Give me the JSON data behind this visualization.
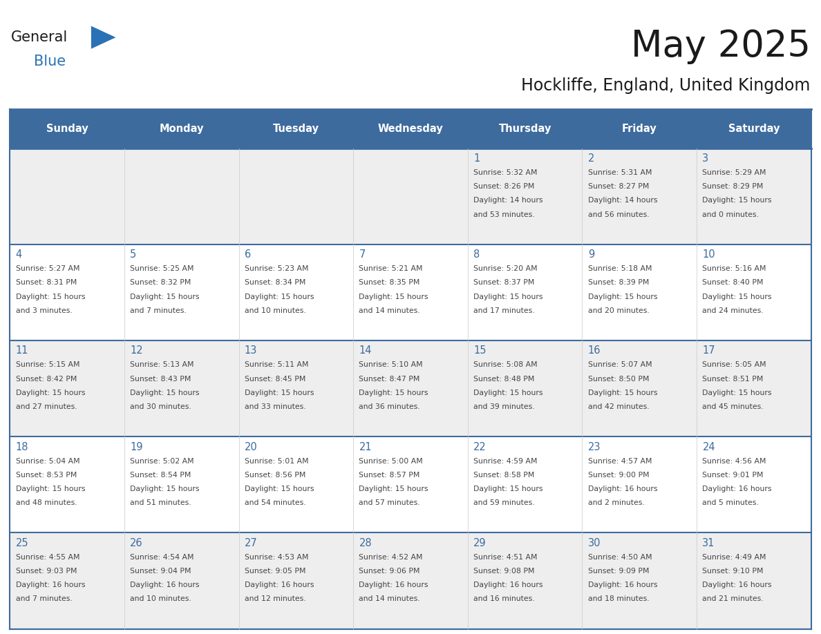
{
  "title": "May 2025",
  "subtitle": "Hockliffe, England, United Kingdom",
  "header_bg_color": "#3d6b9e",
  "header_text_color": "#ffffff",
  "day_names": [
    "Sunday",
    "Monday",
    "Tuesday",
    "Wednesday",
    "Thursday",
    "Friday",
    "Saturday"
  ],
  "row_bg_even": "#eeeeee",
  "row_bg_odd": "#ffffff",
  "cell_text_color": "#444444",
  "day_num_color": "#3d6b9e",
  "border_color": "#3d6b9e",
  "logo_general_color": "#1a1a1a",
  "logo_blue_color": "#2a72b5",
  "logo_triangle_color": "#2a72b5",
  "weeks": [
    [
      {
        "day": null,
        "sunrise": null,
        "sunset": null,
        "daylight": null
      },
      {
        "day": null,
        "sunrise": null,
        "sunset": null,
        "daylight": null
      },
      {
        "day": null,
        "sunrise": null,
        "sunset": null,
        "daylight": null
      },
      {
        "day": null,
        "sunrise": null,
        "sunset": null,
        "daylight": null
      },
      {
        "day": 1,
        "sunrise": "5:32 AM",
        "sunset": "8:26 PM",
        "daylight": "14 hours",
        "daylight2": "and 53 minutes."
      },
      {
        "day": 2,
        "sunrise": "5:31 AM",
        "sunset": "8:27 PM",
        "daylight": "14 hours",
        "daylight2": "and 56 minutes."
      },
      {
        "day": 3,
        "sunrise": "5:29 AM",
        "sunset": "8:29 PM",
        "daylight": "15 hours",
        "daylight2": "and 0 minutes."
      }
    ],
    [
      {
        "day": 4,
        "sunrise": "5:27 AM",
        "sunset": "8:31 PM",
        "daylight": "15 hours",
        "daylight2": "and 3 minutes."
      },
      {
        "day": 5,
        "sunrise": "5:25 AM",
        "sunset": "8:32 PM",
        "daylight": "15 hours",
        "daylight2": "and 7 minutes."
      },
      {
        "day": 6,
        "sunrise": "5:23 AM",
        "sunset": "8:34 PM",
        "daylight": "15 hours",
        "daylight2": "and 10 minutes."
      },
      {
        "day": 7,
        "sunrise": "5:21 AM",
        "sunset": "8:35 PM",
        "daylight": "15 hours",
        "daylight2": "and 14 minutes."
      },
      {
        "day": 8,
        "sunrise": "5:20 AM",
        "sunset": "8:37 PM",
        "daylight": "15 hours",
        "daylight2": "and 17 minutes."
      },
      {
        "day": 9,
        "sunrise": "5:18 AM",
        "sunset": "8:39 PM",
        "daylight": "15 hours",
        "daylight2": "and 20 minutes."
      },
      {
        "day": 10,
        "sunrise": "5:16 AM",
        "sunset": "8:40 PM",
        "daylight": "15 hours",
        "daylight2": "and 24 minutes."
      }
    ],
    [
      {
        "day": 11,
        "sunrise": "5:15 AM",
        "sunset": "8:42 PM",
        "daylight": "15 hours",
        "daylight2": "and 27 minutes."
      },
      {
        "day": 12,
        "sunrise": "5:13 AM",
        "sunset": "8:43 PM",
        "daylight": "15 hours",
        "daylight2": "and 30 minutes."
      },
      {
        "day": 13,
        "sunrise": "5:11 AM",
        "sunset": "8:45 PM",
        "daylight": "15 hours",
        "daylight2": "and 33 minutes."
      },
      {
        "day": 14,
        "sunrise": "5:10 AM",
        "sunset": "8:47 PM",
        "daylight": "15 hours",
        "daylight2": "and 36 minutes."
      },
      {
        "day": 15,
        "sunrise": "5:08 AM",
        "sunset": "8:48 PM",
        "daylight": "15 hours",
        "daylight2": "and 39 minutes."
      },
      {
        "day": 16,
        "sunrise": "5:07 AM",
        "sunset": "8:50 PM",
        "daylight": "15 hours",
        "daylight2": "and 42 minutes."
      },
      {
        "day": 17,
        "sunrise": "5:05 AM",
        "sunset": "8:51 PM",
        "daylight": "15 hours",
        "daylight2": "and 45 minutes."
      }
    ],
    [
      {
        "day": 18,
        "sunrise": "5:04 AM",
        "sunset": "8:53 PM",
        "daylight": "15 hours",
        "daylight2": "and 48 minutes."
      },
      {
        "day": 19,
        "sunrise": "5:02 AM",
        "sunset": "8:54 PM",
        "daylight": "15 hours",
        "daylight2": "and 51 minutes."
      },
      {
        "day": 20,
        "sunrise": "5:01 AM",
        "sunset": "8:56 PM",
        "daylight": "15 hours",
        "daylight2": "and 54 minutes."
      },
      {
        "day": 21,
        "sunrise": "5:00 AM",
        "sunset": "8:57 PM",
        "daylight": "15 hours",
        "daylight2": "and 57 minutes."
      },
      {
        "day": 22,
        "sunrise": "4:59 AM",
        "sunset": "8:58 PM",
        "daylight": "15 hours",
        "daylight2": "and 59 minutes."
      },
      {
        "day": 23,
        "sunrise": "4:57 AM",
        "sunset": "9:00 PM",
        "daylight": "16 hours",
        "daylight2": "and 2 minutes."
      },
      {
        "day": 24,
        "sunrise": "4:56 AM",
        "sunset": "9:01 PM",
        "daylight": "16 hours",
        "daylight2": "and 5 minutes."
      }
    ],
    [
      {
        "day": 25,
        "sunrise": "4:55 AM",
        "sunset": "9:03 PM",
        "daylight": "16 hours",
        "daylight2": "and 7 minutes."
      },
      {
        "day": 26,
        "sunrise": "4:54 AM",
        "sunset": "9:04 PM",
        "daylight": "16 hours",
        "daylight2": "and 10 minutes."
      },
      {
        "day": 27,
        "sunrise": "4:53 AM",
        "sunset": "9:05 PM",
        "daylight": "16 hours",
        "daylight2": "and 12 minutes."
      },
      {
        "day": 28,
        "sunrise": "4:52 AM",
        "sunset": "9:06 PM",
        "daylight": "16 hours",
        "daylight2": "and 14 minutes."
      },
      {
        "day": 29,
        "sunrise": "4:51 AM",
        "sunset": "9:08 PM",
        "daylight": "16 hours",
        "daylight2": "and 16 minutes."
      },
      {
        "day": 30,
        "sunrise": "4:50 AM",
        "sunset": "9:09 PM",
        "daylight": "16 hours",
        "daylight2": "and 18 minutes."
      },
      {
        "day": 31,
        "sunrise": "4:49 AM",
        "sunset": "9:10 PM",
        "daylight": "16 hours",
        "daylight2": "and 21 minutes."
      }
    ]
  ]
}
